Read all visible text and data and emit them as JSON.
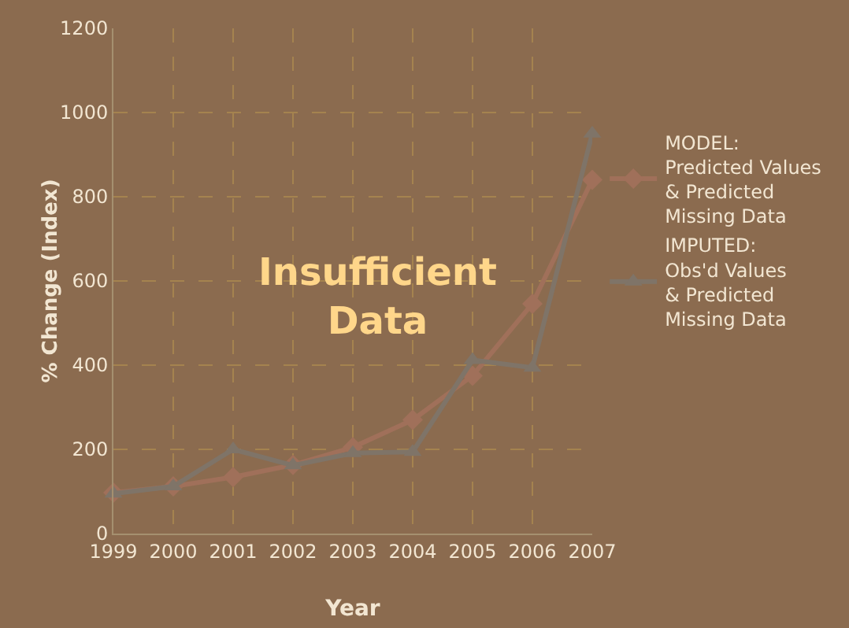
{
  "chart_data": {
    "type": "line",
    "xlabel": "Year",
    "ylabel": "% Change (Index)",
    "x": [
      1999,
      2000,
      2001,
      2002,
      2003,
      2004,
      2005,
      2006,
      2007
    ],
    "series": [
      {
        "name": "MODEL:\nPredicted Values\n& Predicted\nMissing Data",
        "color": "#a0705a",
        "marker": "diamond",
        "values": [
          97,
          112,
          134,
          163,
          205,
          270,
          375,
          546,
          840
        ]
      },
      {
        "name": "IMPUTED:\nObs'd Values\n& Predicted\nMissing Data",
        "color": "#7f7468",
        "marker": "triangle",
        "values": [
          95,
          112,
          200,
          162,
          191,
          194,
          412,
          394,
          950
        ]
      }
    ],
    "xlim": [
      1999,
      2007
    ],
    "xticks": [
      1999,
      2000,
      2001,
      2002,
      2003,
      2004,
      2005,
      2006,
      2007
    ],
    "ylim": [
      0,
      1200
    ],
    "yticks": [
      0,
      200,
      400,
      600,
      800,
      1000,
      1200
    ],
    "grid": true,
    "legend": "right",
    "line_style": "solid",
    "annotations": [
      "Insufficient\nData"
    ]
  }
}
